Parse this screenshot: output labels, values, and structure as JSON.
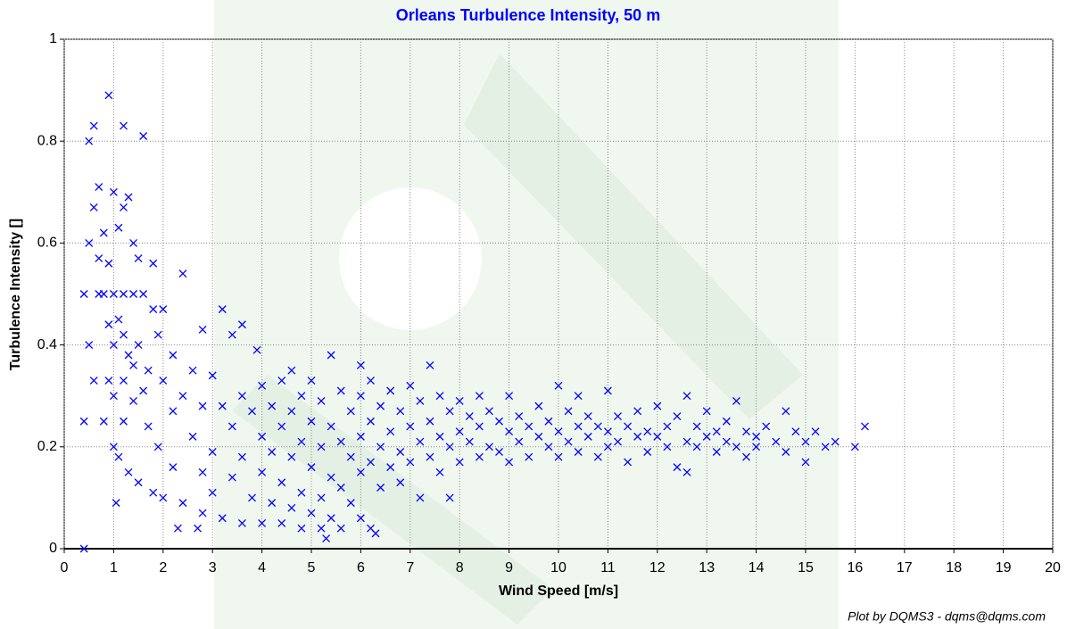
{
  "chart_data": {
    "type": "scatter",
    "title": "Orleans Turbulence Intensity, 50 m",
    "x_label": "Wind Speed [m/s]",
    "y_label": "Turbulence Intensity []",
    "footer": "Plot by DQMS3 - dqms@dqms.com",
    "color": "#0000ff",
    "marker": "x",
    "grid": true,
    "xlim": [
      0,
      20
    ],
    "ylim": [
      0,
      1
    ],
    "xticks": [
      0,
      1,
      2,
      3,
      4,
      5,
      6,
      7,
      8,
      9,
      10,
      11,
      12,
      13,
      14,
      15,
      16,
      17,
      18,
      19,
      20
    ],
    "yticks": [
      0,
      0.2,
      0.4,
      0.6,
      0.8,
      1
    ],
    "x": [
      0.4,
      0.4,
      0.4,
      0.5,
      0.5,
      0.5,
      0.6,
      0.6,
      0.6,
      0.7,
      0.7,
      0.7,
      0.8,
      0.8,
      0.8,
      0.9,
      0.9,
      0.9,
      0.9,
      1.0,
      1.0,
      1.0,
      1.0,
      1.0,
      1.1,
      1.1,
      1.1,
      1.2,
      1.2,
      1.2,
      1.2,
      1.2,
      1.2,
      1.3,
      1.3,
      1.3,
      1.4,
      1.4,
      1.4,
      1.4,
      1.5,
      1.5,
      1.5,
      1.6,
      1.6,
      1.6,
      1.7,
      1.7,
      1.8,
      1.8,
      1.8,
      1.9,
      1.9,
      2.0,
      2.0,
      2.0,
      1.05,
      2.2,
      2.2,
      2.2,
      2.3,
      2.4,
      2.4,
      2.4,
      2.6,
      2.6,
      2.7,
      2.8,
      2.8,
      2.8,
      2.8,
      3.0,
      3.0,
      3.0,
      3.2,
      3.2,
      3.2,
      3.4,
      3.4,
      3.4,
      3.6,
      3.6,
      3.6,
      3.6,
      3.8,
      3.8,
      3.9,
      4.0,
      4.0,
      4.0,
      4.0,
      4.2,
      4.2,
      4.2,
      4.4,
      4.4,
      4.4,
      4.4,
      4.6,
      4.6,
      4.6,
      4.6,
      4.8,
      4.8,
      4.8,
      4.8,
      5.0,
      5.0,
      5.0,
      5.0,
      5.2,
      5.2,
      5.2,
      5.2,
      5.3,
      5.4,
      5.4,
      5.4,
      5.4,
      5.6,
      5.6,
      5.6,
      5.6,
      5.8,
      5.8,
      5.8,
      6.0,
      6.0,
      6.0,
      6.0,
      6.0,
      6.2,
      6.2,
      6.2,
      6.2,
      6.4,
      6.4,
      6.4,
      6.3,
      6.6,
      6.6,
      6.6,
      6.8,
      6.8,
      6.8,
      7.0,
      7.0,
      7.0,
      7.2,
      7.2,
      7.2,
      7.4,
      7.4,
      7.4,
      7.6,
      7.6,
      7.6,
      7.8,
      7.8,
      7.8,
      8.0,
      8.0,
      8.0,
      8.2,
      8.2,
      8.4,
      8.4,
      8.4,
      8.6,
      8.6,
      8.8,
      8.8,
      9.0,
      9.0,
      9.0,
      9.2,
      9.2,
      9.4,
      9.4,
      9.6,
      9.6,
      9.8,
      9.8,
      10.0,
      10.0,
      10.0,
      10.2,
      10.2,
      10.4,
      10.4,
      10.4,
      10.6,
      10.6,
      10.8,
      10.8,
      11.0,
      11.0,
      11.0,
      11.2,
      11.2,
      11.4,
      11.4,
      11.6,
      11.6,
      11.8,
      11.8,
      12.0,
      12.0,
      12.2,
      12.2,
      12.4,
      12.4,
      12.6,
      12.6,
      12.6,
      12.8,
      12.8,
      13.0,
      13.0,
      13.2,
      13.2,
      13.4,
      13.4,
      13.6,
      13.6,
      13.8,
      13.8,
      14.0,
      14.0,
      14.2,
      14.4,
      14.6,
      14.6,
      14.8,
      15.0,
      15.0,
      15.2,
      15.4,
      15.6,
      16.0,
      16.2
    ],
    "values": [
      0.5,
      0.25,
      0,
      0.8,
      0.6,
      0.4,
      0.67,
      0.83,
      0.33,
      0.71,
      0.57,
      0.5,
      0.62,
      0.5,
      0.25,
      0.89,
      0.56,
      0.44,
      0.33,
      0.7,
      0.5,
      0.4,
      0.3,
      0.2,
      0.63,
      0.45,
      0.18,
      0.83,
      0.67,
      0.5,
      0.42,
      0.33,
      0.25,
      0.69,
      0.38,
      0.15,
      0.6,
      0.5,
      0.36,
      0.29,
      0.57,
      0.4,
      0.13,
      0.81,
      0.5,
      0.31,
      0.35,
      0.24,
      0.56,
      0.47,
      0.11,
      0.42,
      0.2,
      0.47,
      0.33,
      0.1,
      0.09,
      0.38,
      0.27,
      0.16,
      0.04,
      0.54,
      0.3,
      0.09,
      0.35,
      0.22,
      0.04,
      0.43,
      0.28,
      0.15,
      0.07,
      0.34,
      0.19,
      0.11,
      0.47,
      0.28,
      0.06,
      0.42,
      0.24,
      0.14,
      0.44,
      0.3,
      0.18,
      0.05,
      0.27,
      0.1,
      0.39,
      0.32,
      0.22,
      0.15,
      0.05,
      0.28,
      0.19,
      0.09,
      0.33,
      0.24,
      0.13,
      0.05,
      0.35,
      0.27,
      0.18,
      0.08,
      0.3,
      0.21,
      0.11,
      0.04,
      0.33,
      0.25,
      0.16,
      0.07,
      0.29,
      0.2,
      0.1,
      0.04,
      0.02,
      0.38,
      0.24,
      0.14,
      0.06,
      0.31,
      0.21,
      0.12,
      0.04,
      0.27,
      0.18,
      0.09,
      0.36,
      0.3,
      0.22,
      0.15,
      0.06,
      0.33,
      0.25,
      0.17,
      0.04,
      0.28,
      0.2,
      0.12,
      0.03,
      0.31,
      0.23,
      0.16,
      0.27,
      0.19,
      0.13,
      0.32,
      0.24,
      0.17,
      0.29,
      0.21,
      0.1,
      0.36,
      0.25,
      0.18,
      0.3,
      0.22,
      0.15,
      0.27,
      0.2,
      0.1,
      0.29,
      0.23,
      0.17,
      0.26,
      0.21,
      0.3,
      0.24,
      0.18,
      0.27,
      0.2,
      0.25,
      0.19,
      0.3,
      0.23,
      0.17,
      0.26,
      0.21,
      0.24,
      0.18,
      0.28,
      0.22,
      0.25,
      0.2,
      0.32,
      0.23,
      0.18,
      0.27,
      0.21,
      0.3,
      0.24,
      0.19,
      0.26,
      0.22,
      0.24,
      0.18,
      0.31,
      0.23,
      0.2,
      0.26,
      0.21,
      0.24,
      0.17,
      0.27,
      0.22,
      0.23,
      0.19,
      0.28,
      0.22,
      0.24,
      0.2,
      0.26,
      0.16,
      0.3,
      0.21,
      0.15,
      0.24,
      0.2,
      0.27,
      0.22,
      0.23,
      0.19,
      0.25,
      0.21,
      0.29,
      0.2,
      0.23,
      0.18,
      0.22,
      0.2,
      0.24,
      0.21,
      0.27,
      0.19,
      0.23,
      0.21,
      0.17,
      0.23,
      0.2,
      0.21,
      0.2,
      0.24
    ]
  }
}
